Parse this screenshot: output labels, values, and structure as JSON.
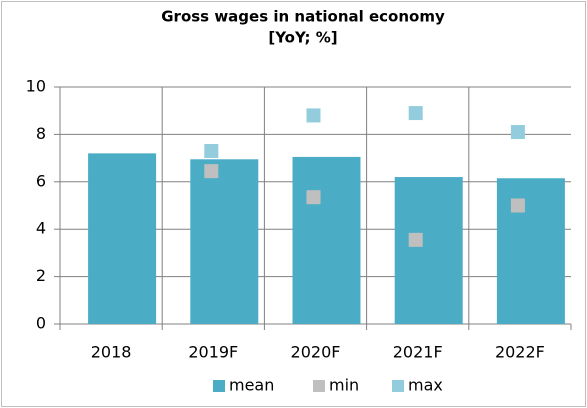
{
  "chart_data": {
    "type": "bar",
    "title": [
      "Gross wages in national economy",
      "[YoY; %]"
    ],
    "categories": [
      "2018",
      "2019F",
      "2020F",
      "2021F",
      "2022F"
    ],
    "series": [
      {
        "name": "mean",
        "color": "#4bacc6",
        "style": "bar",
        "values": [
          7.2,
          6.95,
          7.05,
          6.2,
          6.15
        ]
      },
      {
        "name": "min",
        "color": "#bfbfbf",
        "style": "marker",
        "values": [
          null,
          6.45,
          5.35,
          3.55,
          5.0
        ]
      },
      {
        "name": "max",
        "color": "#93cddd",
        "style": "marker",
        "values": [
          null,
          7.3,
          8.8,
          8.9,
          8.1
        ]
      }
    ],
    "ylim": [
      0,
      10
    ],
    "yticks": [
      0,
      2,
      4,
      6,
      8,
      10
    ],
    "grid": true,
    "legend": "bottom"
  }
}
